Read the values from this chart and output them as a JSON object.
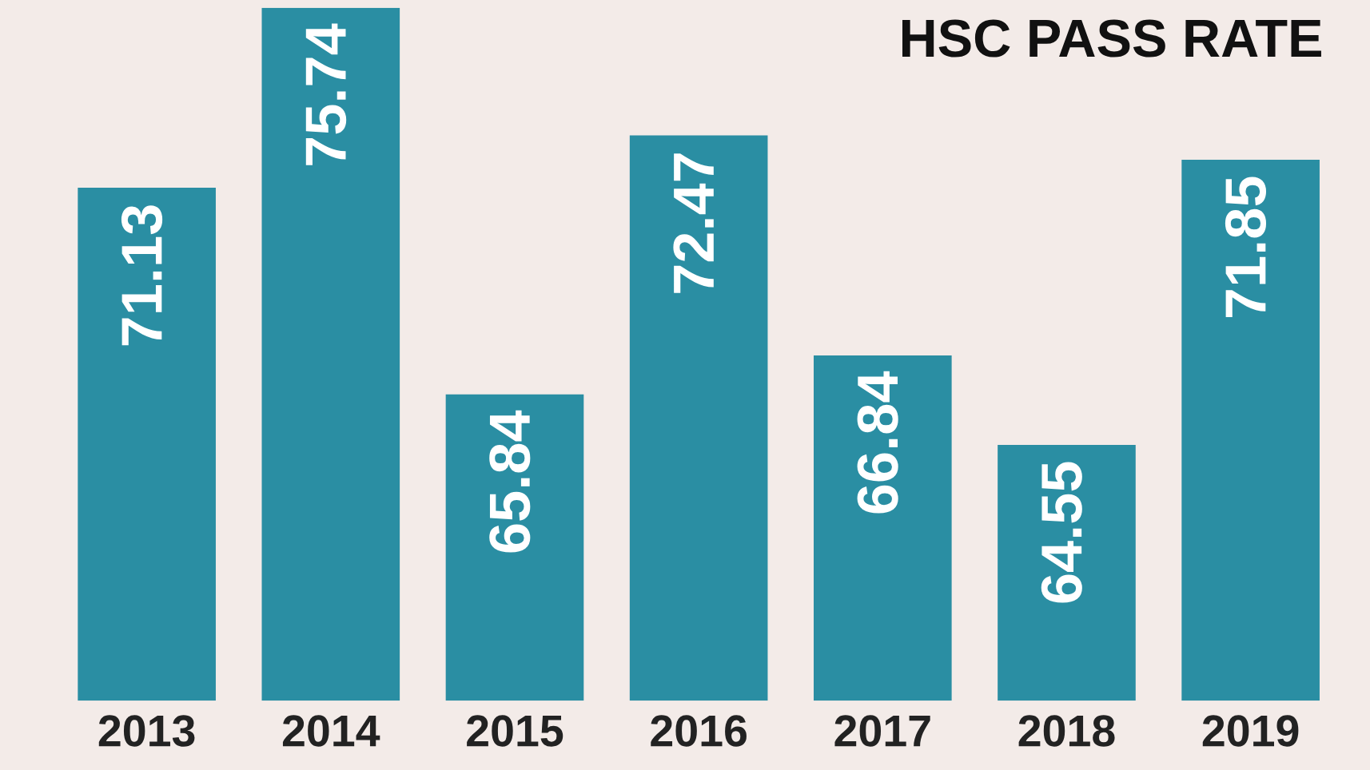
{
  "chart_data": {
    "type": "bar",
    "title": "HSC PASS RATE",
    "categories": [
      "2013",
      "2014",
      "2015",
      "2016",
      "2017",
      "2018",
      "2019"
    ],
    "values": [
      71.13,
      75.74,
      65.84,
      72.47,
      66.84,
      64.55,
      71.85
    ],
    "color": "#2a8ea3",
    "ylim": [
      58,
      75.74
    ],
    "data_labels": true,
    "tick_labels": "x",
    "grid": false,
    "legend": false
  }
}
